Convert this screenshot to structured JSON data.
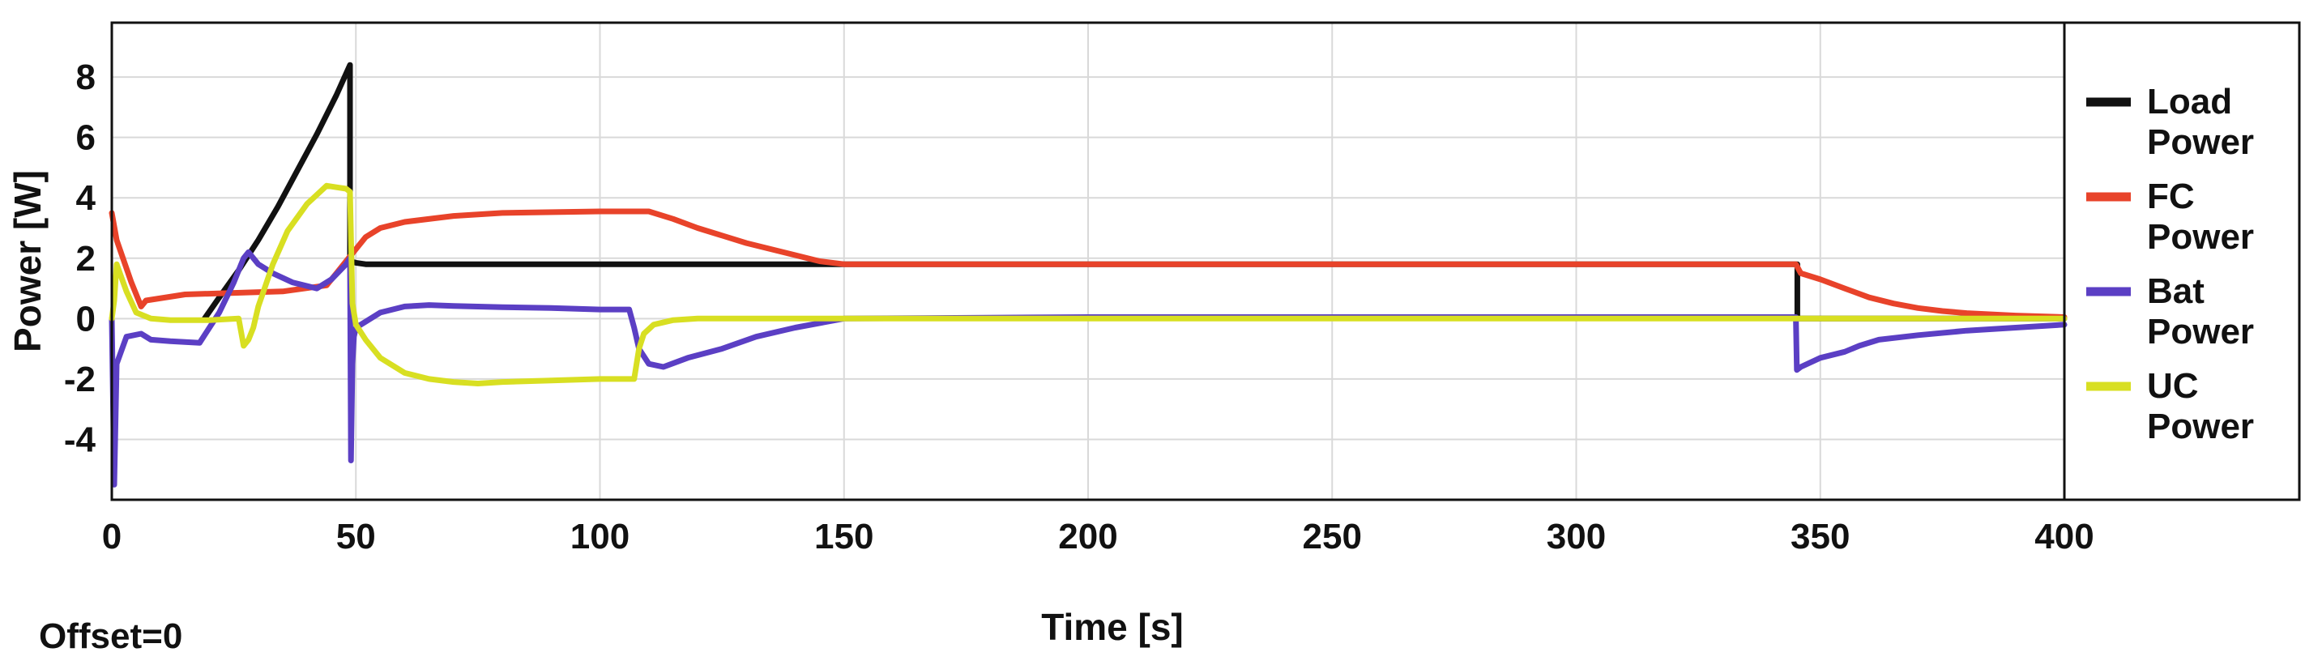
{
  "chart_data": {
    "type": "line",
    "title": "",
    "xlabel": "Time [s]",
    "ylabel": "Power [W]",
    "xlim": [
      0,
      400
    ],
    "ylim": [
      -6,
      9.8
    ],
    "xticks": [
      0,
      50,
      100,
      150,
      200,
      250,
      300,
      350,
      400
    ],
    "yticks": [
      -4,
      -2,
      0,
      2,
      4,
      6,
      8
    ],
    "grid": true,
    "legend_position": "right",
    "footer_text": "Offset=0",
    "series": [
      {
        "name": "Load Power",
        "legend_lines": [
          "Load",
          "Power"
        ],
        "color": "#111111",
        "x": [
          19,
          22,
          26,
          30,
          34,
          38,
          42,
          46,
          48.8,
          48.8,
          50,
          52,
          60,
          100,
          150,
          200,
          250,
          300,
          345,
          345.3,
          345.3,
          400
        ],
        "y": [
          0,
          0.7,
          1.6,
          2.6,
          3.7,
          4.9,
          6.1,
          7.4,
          8.4,
          1.9,
          1.85,
          1.8,
          1.8,
          1.8,
          1.8,
          1.8,
          1.8,
          1.8,
          1.8,
          1.8,
          0,
          0
        ]
      },
      {
        "name": "FC Power",
        "legend_lines": [
          "FC",
          "Power"
        ],
        "color": "#e8432a",
        "x": [
          0,
          1,
          4,
          6,
          7,
          15,
          25,
          35,
          44,
          46,
          48,
          50,
          52,
          55,
          60,
          70,
          80,
          100,
          110,
          115,
          120,
          130,
          140,
          145,
          150,
          200,
          250,
          300,
          345,
          346,
          350,
          355,
          360,
          365,
          370,
          375,
          380,
          390,
          400
        ],
        "y": [
          3.5,
          2.6,
          1.2,
          0.4,
          0.6,
          0.8,
          0.85,
          0.9,
          1.1,
          1.5,
          1.9,
          2.3,
          2.7,
          3.0,
          3.2,
          3.4,
          3.5,
          3.55,
          3.55,
          3.3,
          3.0,
          2.5,
          2.1,
          1.9,
          1.8,
          1.8,
          1.8,
          1.8,
          1.8,
          1.5,
          1.3,
          1.0,
          0.7,
          0.5,
          0.35,
          0.25,
          0.18,
          0.1,
          0.05
        ]
      },
      {
        "name": "Bat Power",
        "legend_lines": [
          "Bat",
          "Power"
        ],
        "color": "#5b3fc4",
        "x": [
          0,
          0.5,
          1,
          3,
          6,
          8,
          12,
          18,
          22,
          25,
          27,
          28,
          30,
          33,
          37,
          42,
          45,
          48,
          48.8,
          49,
          49.3,
          49.6,
          50,
          52,
          55,
          60,
          65,
          70,
          80,
          90,
          100,
          106,
          107,
          108,
          110,
          113,
          118,
          125,
          132,
          140,
          150,
          200,
          250,
          300,
          345,
          345.2,
          346,
          350,
          355,
          358,
          362,
          370,
          380,
          390,
          400
        ],
        "y": [
          0,
          -5.5,
          -1.5,
          -0.6,
          -0.5,
          -0.7,
          -0.75,
          -0.8,
          0.2,
          1.2,
          2.0,
          2.2,
          1.8,
          1.5,
          1.2,
          1.0,
          1.3,
          1.8,
          2.0,
          -4.7,
          -1.5,
          -0.6,
          -0.3,
          -0.1,
          0.2,
          0.4,
          0.45,
          0.42,
          0.38,
          0.35,
          0.3,
          0.3,
          -0.3,
          -1.0,
          -1.5,
          -1.6,
          -1.3,
          -1.0,
          -0.6,
          -0.3,
          0,
          0.05,
          0.05,
          0.05,
          0.05,
          -1.7,
          -1.6,
          -1.3,
          -1.1,
          -0.9,
          -0.7,
          -0.55,
          -0.4,
          -0.3,
          -0.2
        ]
      },
      {
        "name": "UC Power",
        "legend_lines": [
          "UC",
          "Power"
        ],
        "color": "#d8df22",
        "x": [
          0,
          0.5,
          1,
          3,
          5,
          8,
          12,
          20,
          26,
          27,
          28,
          29,
          30,
          33,
          36,
          40,
          44,
          46,
          48,
          48.8,
          49.3,
          50,
          52,
          55,
          60,
          65,
          70,
          75,
          80,
          90,
          100,
          107,
          108,
          109,
          111,
          115,
          120,
          130,
          140,
          150,
          200,
          250,
          300,
          345,
          400
        ],
        "y": [
          0,
          0.6,
          1.8,
          0.9,
          0.2,
          0,
          -0.05,
          -0.05,
          0,
          -0.9,
          -0.7,
          -0.3,
          0.4,
          1.8,
          2.9,
          3.8,
          4.4,
          4.35,
          4.3,
          4.2,
          0.5,
          -0.2,
          -0.7,
          -1.3,
          -1.8,
          -2.0,
          -2.1,
          -2.15,
          -2.1,
          -2.05,
          -2.0,
          -2.0,
          -1.0,
          -0.5,
          -0.2,
          -0.05,
          0,
          0,
          0,
          0,
          0,
          0,
          0,
          0,
          0
        ]
      }
    ]
  }
}
